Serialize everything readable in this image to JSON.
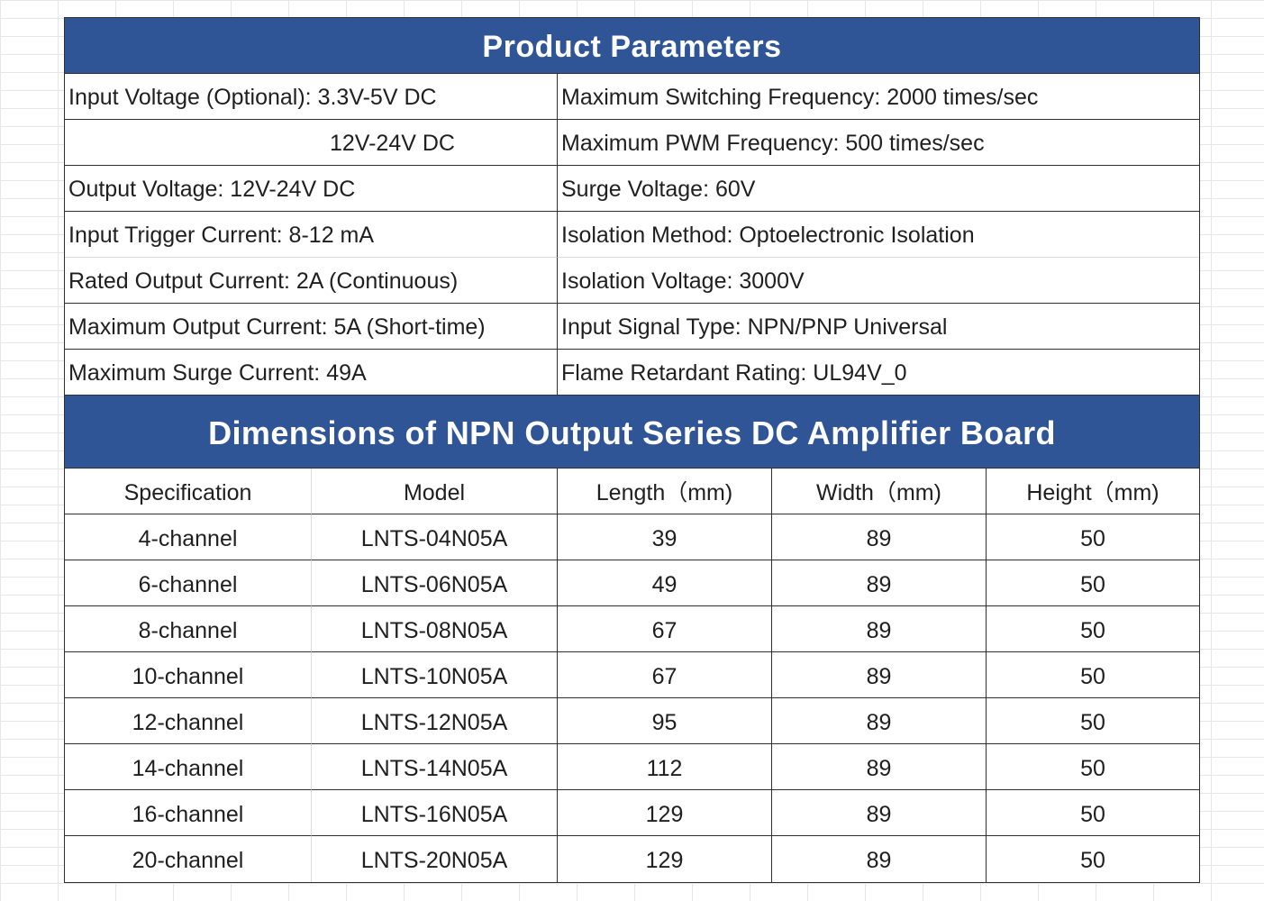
{
  "product_parameters": {
    "title": "Product Parameters",
    "rows": [
      {
        "left": "Input Voltage (Optional): 3.3V-5V DC",
        "right": "Maximum Switching Frequency: 2000 times/sec"
      },
      {
        "left": "12V-24V DC",
        "right": "Maximum PWM Frequency: 500 times/sec"
      },
      {
        "left": "Output Voltage: 12V-24V DC",
        "right": "Surge Voltage: 60V"
      },
      {
        "left": "Input Trigger Current: 8-12 mA",
        "right": "Isolation Method: Optoelectronic Isolation"
      },
      {
        "left": "Rated Output Current: 2A (Continuous)",
        "right": "Isolation Voltage: 3000V"
      },
      {
        "left": "Maximum Output Current: 5A (Short-time)",
        "right": "Input Signal Type: NPN/PNP Universal"
      },
      {
        "left": "Maximum Surge Current: 49A",
        "right": "Flame Retardant Rating: UL94V_0"
      }
    ]
  },
  "dimensions": {
    "title": "Dimensions of NPN Output Series DC Amplifier Board",
    "headers": [
      "Specification",
      "Model",
      "Length（mm)",
      "Width（mm)",
      "Height（mm)"
    ],
    "rows": [
      [
        "4-channel",
        "LNTS-04N05A",
        "39",
        "89",
        "50"
      ],
      [
        "6-channel",
        "LNTS-06N05A",
        "49",
        "89",
        "50"
      ],
      [
        "8-channel",
        "LNTS-08N05A",
        "67",
        "89",
        "50"
      ],
      [
        "10-channel",
        "LNTS-10N05A",
        "67",
        "89",
        "50"
      ],
      [
        "12-channel",
        "LNTS-12N05A",
        "95",
        "89",
        "50"
      ],
      [
        "14-channel",
        "LNTS-14N05A",
        "112",
        "89",
        "50"
      ],
      [
        "16-channel",
        "LNTS-16N05A",
        "129",
        "89",
        "50"
      ],
      [
        "20-channel",
        "LNTS-20N05A",
        "129",
        "89",
        "50"
      ]
    ]
  },
  "colors": {
    "header_fill": "#2f5597",
    "header_text": "#ffffff",
    "border": "#2f2f2f"
  }
}
